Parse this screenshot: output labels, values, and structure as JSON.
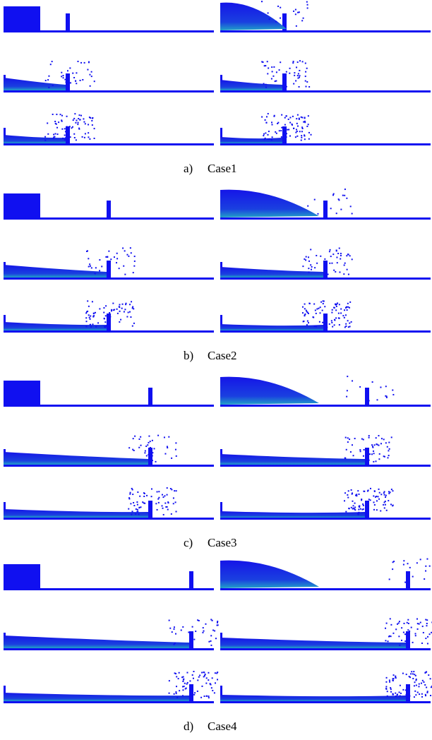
{
  "figure": {
    "panels": [
      {
        "letter": "a)",
        "caption": "Case1"
      },
      {
        "letter": "b)",
        "caption": "Case2"
      },
      {
        "letter": "c)",
        "caption": "Case3"
      },
      {
        "letter": "d)",
        "caption": "Case4"
      }
    ]
  }
}
